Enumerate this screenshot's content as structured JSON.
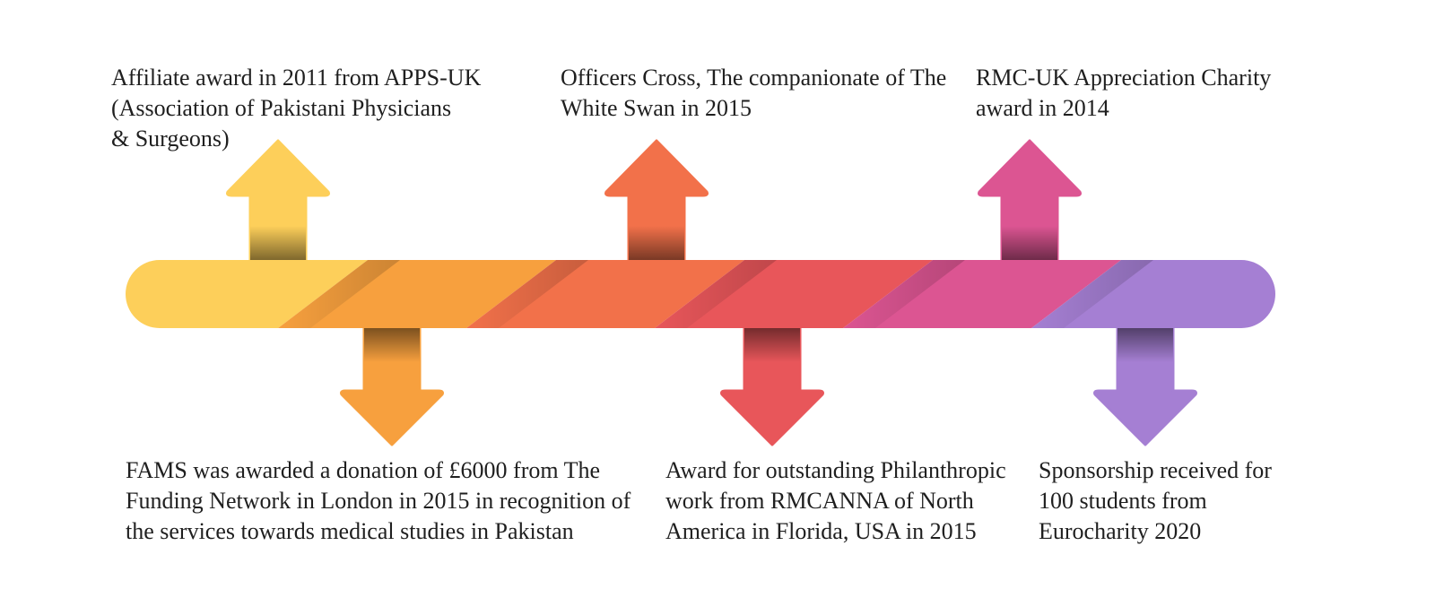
{
  "colors": {
    "yellow": "#FDCF5A",
    "orange": "#F7A03E",
    "coral": "#F2714A",
    "red": "#E8565A",
    "pink": "#DC5592",
    "purple": "#A57FD3"
  },
  "milestones": [
    {
      "text": "Affiliate award in 2011 from APPS-UK\n(Association of Pakistani Physicians\n& Surgeons)",
      "direction": "up",
      "color": "#FDCF5A"
    },
    {
      "text": "FAMS was awarded a donation of £6000 from The\nFunding Network in London in 2015 in recognition of\nthe services towards medical studies in Pakistan",
      "direction": "down",
      "color": "#F7A03E"
    },
    {
      "text": "Officers Cross, The companionate of The\nWhite Swan in 2015",
      "direction": "up",
      "color": "#F2714A"
    },
    {
      "text": "Award for outstanding Philanthropic\nwork from RMCANNA of North\nAmerica in Florida, USA in 2015",
      "direction": "down",
      "color": "#E8565A"
    },
    {
      "text": "RMC-UK Appreciation Charity\naward in 2014",
      "direction": "up",
      "color": "#DC5592"
    },
    {
      "text": "Sponsorship received for\n100 students from\nEurocharity 2020",
      "direction": "down",
      "color": "#A57FD3"
    }
  ]
}
